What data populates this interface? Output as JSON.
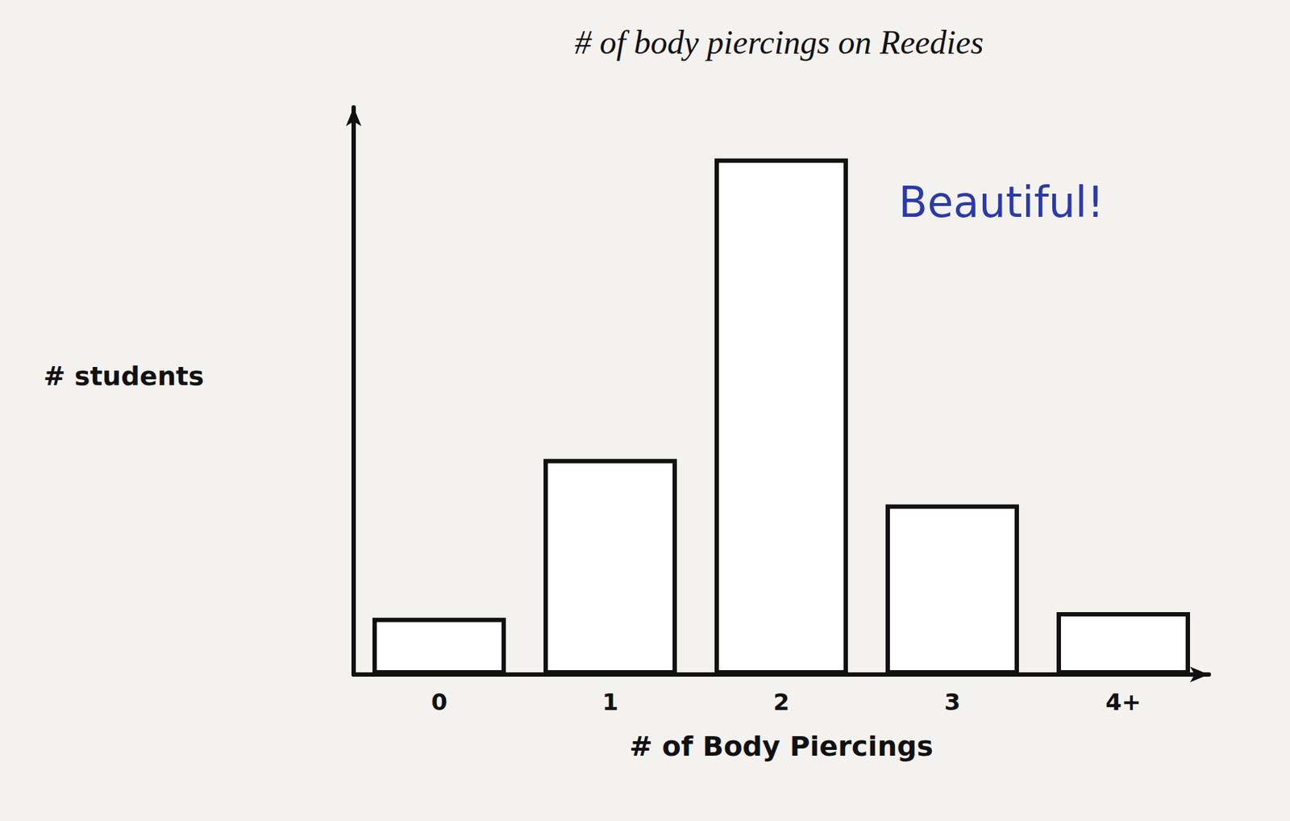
{
  "chart_data": {
    "type": "bar",
    "title": "# of body piercings on Reedies",
    "x_label": "# of Body Piercings",
    "y_label": "# students",
    "annotation": "Beautiful!",
    "categories": [
      "0",
      "1",
      "2",
      "3",
      "4+"
    ],
    "values": [
      10,
      38,
      91,
      30,
      11
    ],
    "color": "#ffffff",
    "ylim": [
      0,
      100
    ],
    "grid": false,
    "tick_labels": "x"
  }
}
